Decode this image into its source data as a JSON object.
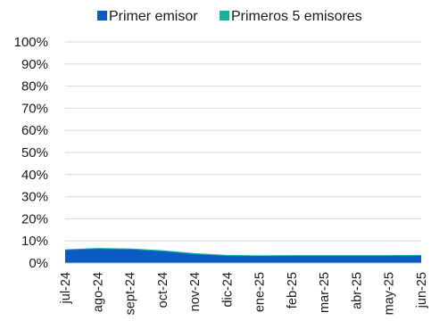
{
  "chart_data": {
    "type": "area",
    "title": "",
    "xlabel": "",
    "ylabel": "",
    "x": [
      "jul-24",
      "ago-24",
      "sept-24",
      "oct-24",
      "nov-24",
      "dic-24",
      "ene-25",
      "feb-25",
      "mar-25",
      "abr-25",
      "may-25",
      "jun-25"
    ],
    "yticks": [
      "0%",
      "10%",
      "20%",
      "30%",
      "40%",
      "50%",
      "60%",
      "70%",
      "80%",
      "90%",
      "100%"
    ],
    "ylim": [
      0,
      100
    ],
    "grid": true,
    "legend_position": "top",
    "series": [
      {
        "name": "Primer emisor",
        "color": "#0a5bc4",
        "values": [
          5.8,
          6.4,
          6.1,
          5.3,
          4.0,
          3.2,
          3.1,
          3.2,
          3.2,
          3.2,
          3.2,
          3.3
        ]
      },
      {
        "name": "Primeros 5 emisores",
        "color": "#17b39a",
        "values": [
          6.2,
          6.8,
          6.6,
          5.8,
          4.5,
          3.7,
          3.5,
          3.6,
          3.6,
          3.6,
          3.6,
          3.7
        ]
      }
    ]
  }
}
